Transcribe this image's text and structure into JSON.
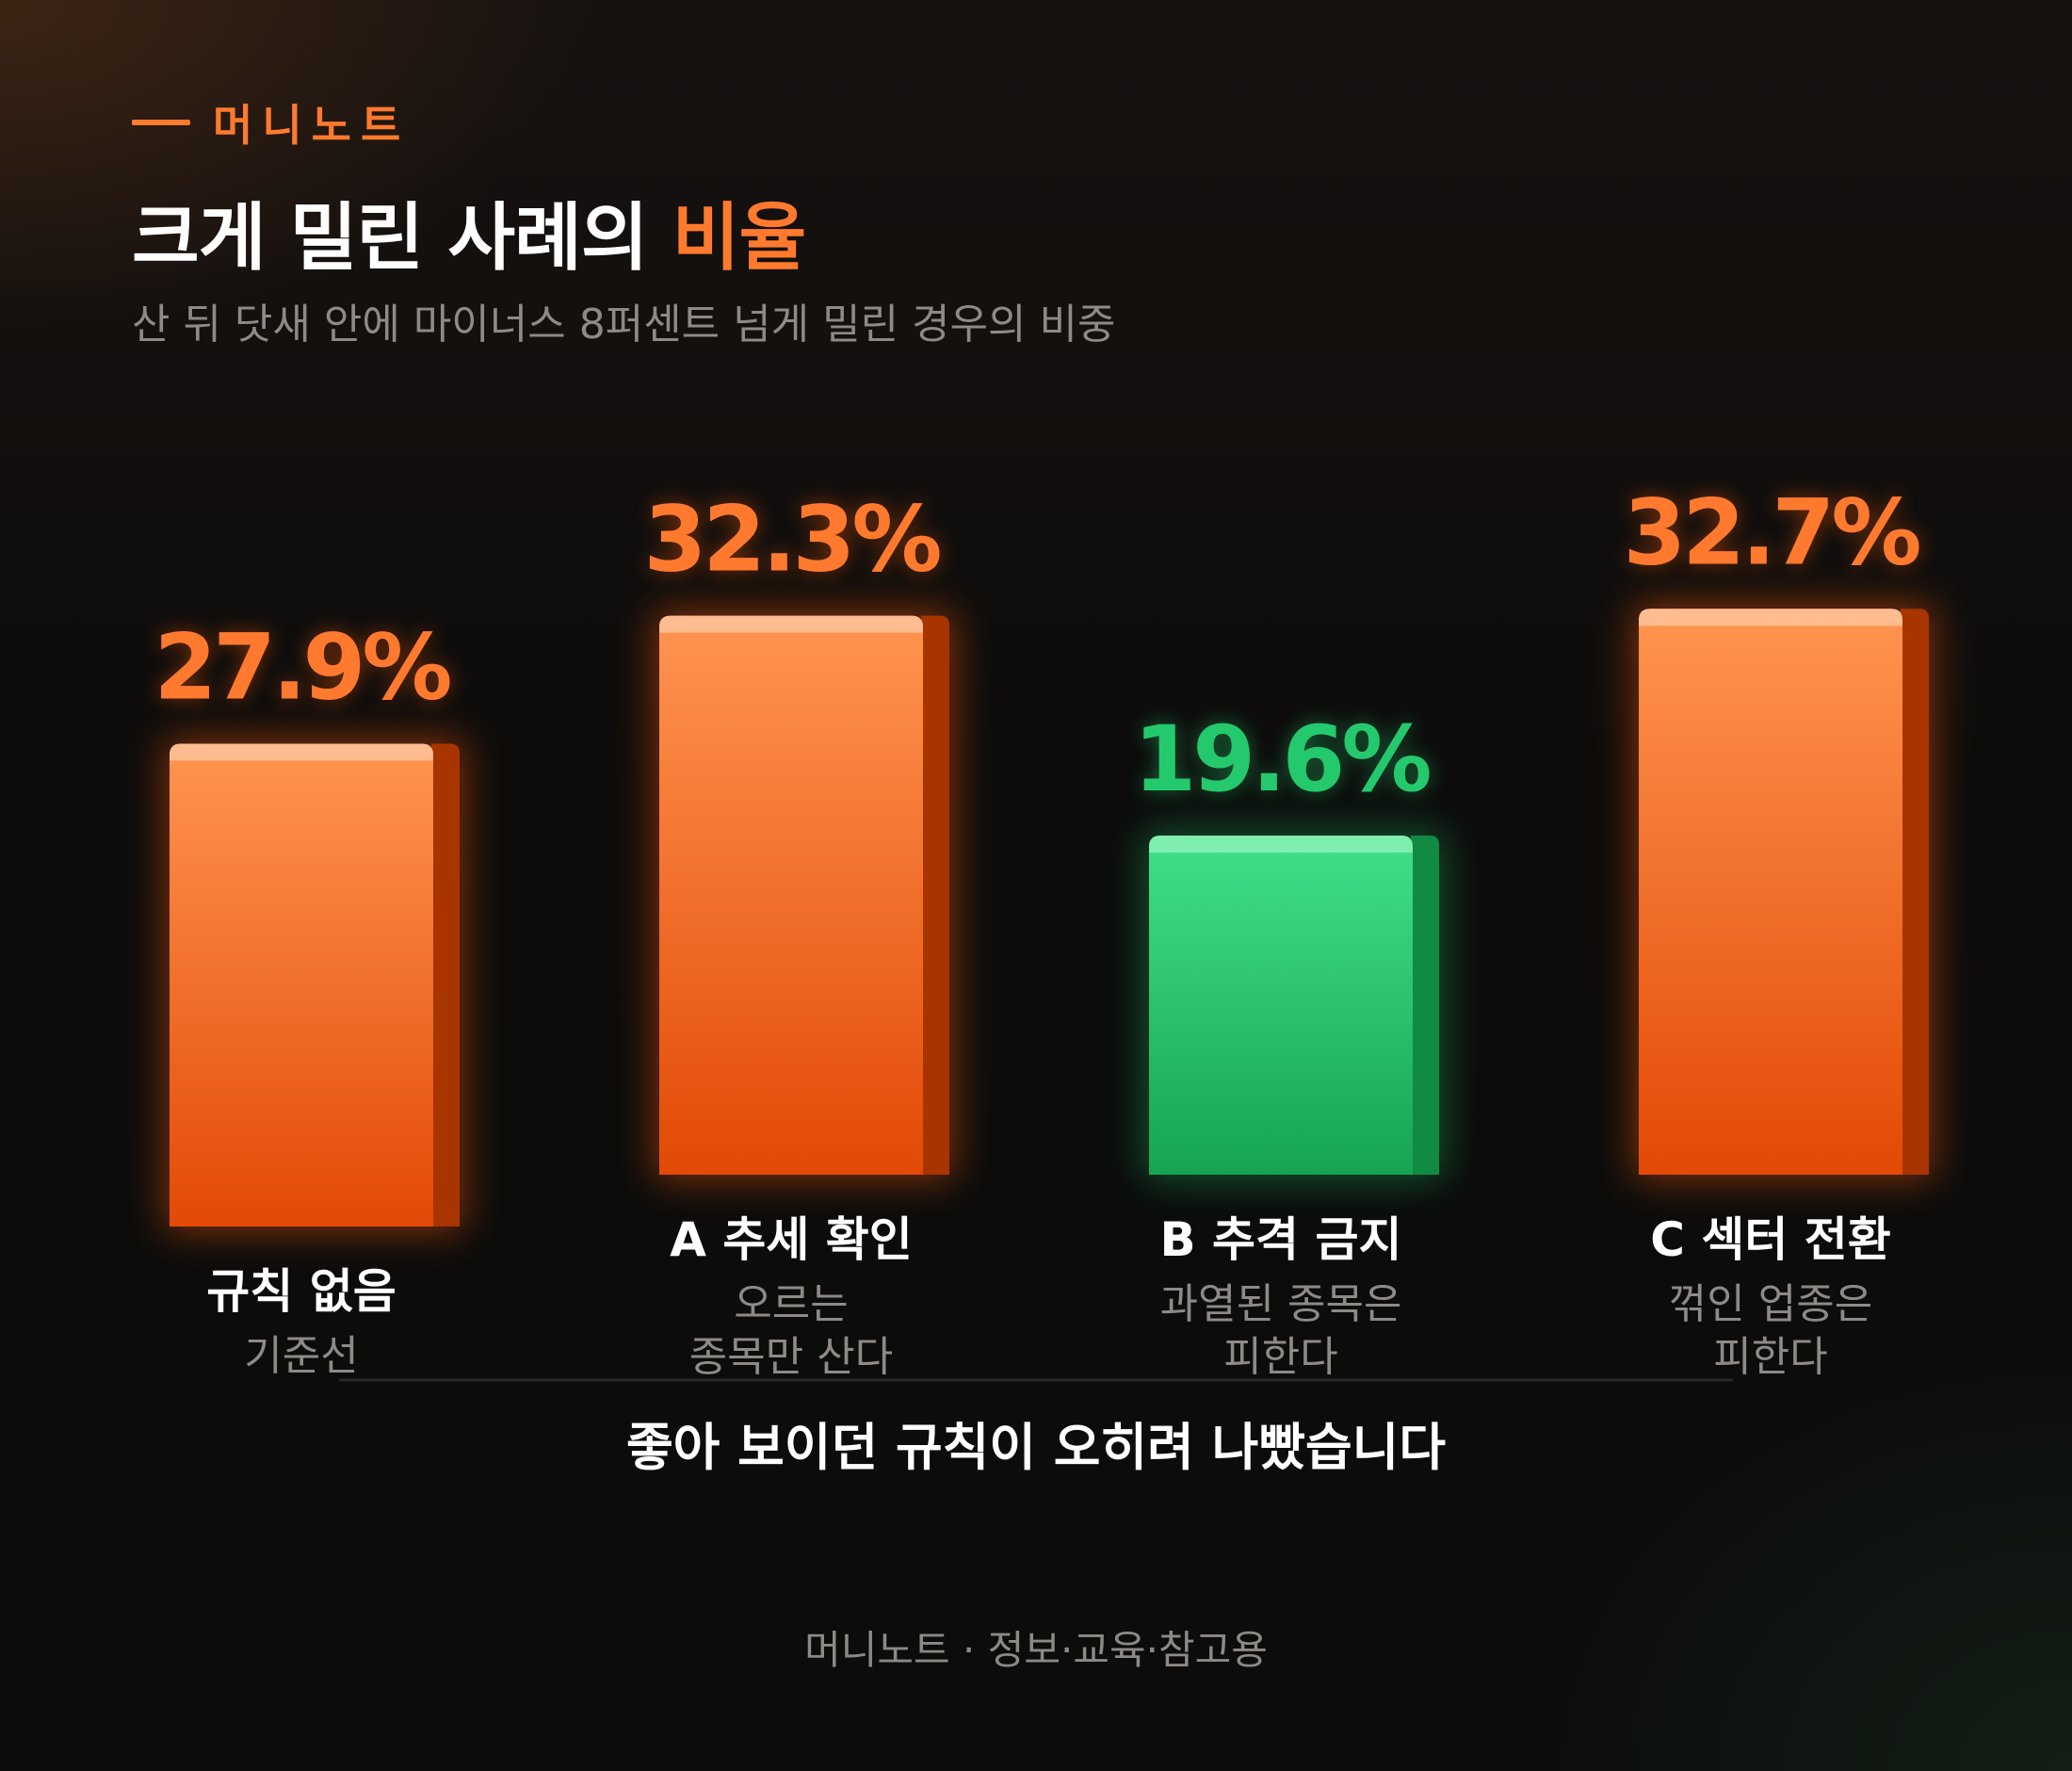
{
  "brand": {
    "name": "머니노트"
  },
  "header": {
    "title_main": "크게 밀린 사례의 ",
    "title_accent": "비율",
    "subtitle": "산 뒤 닷새 안에 마이너스 8퍼센트 넘게 밀린 경우의 비중"
  },
  "colors": {
    "accent": "#ff7a2e",
    "bar_orange": "#f0661c",
    "bar_green": "#22c36a",
    "muted_text": "#8e8a86"
  },
  "chart_data": {
    "type": "bar",
    "title": "크게 밀린 사례의 비율",
    "unit": "%",
    "categories": [
      "규칙 없음",
      "A 추세 확인",
      "B 추격 금지",
      "C 섹터 전환"
    ],
    "category_descriptions": [
      [
        "기준선"
      ],
      [
        "오르는",
        "종목만 산다"
      ],
      [
        "과열된 종목은",
        "피한다"
      ],
      [
        "꺾인 업종은",
        "피한다"
      ]
    ],
    "values": [
      27.9,
      32.3,
      19.6,
      32.7
    ],
    "value_labels": [
      "27.9%",
      "32.3%",
      "19.6%",
      "32.7%"
    ],
    "bar_colors": [
      "orange",
      "orange",
      "green",
      "orange"
    ],
    "grid": false,
    "legend": "none",
    "annotation": "좋아 보이던 규칙이 오히려 나빴습니다"
  },
  "footer": {
    "text": "머니노트 · 정보·교육·참고용"
  }
}
